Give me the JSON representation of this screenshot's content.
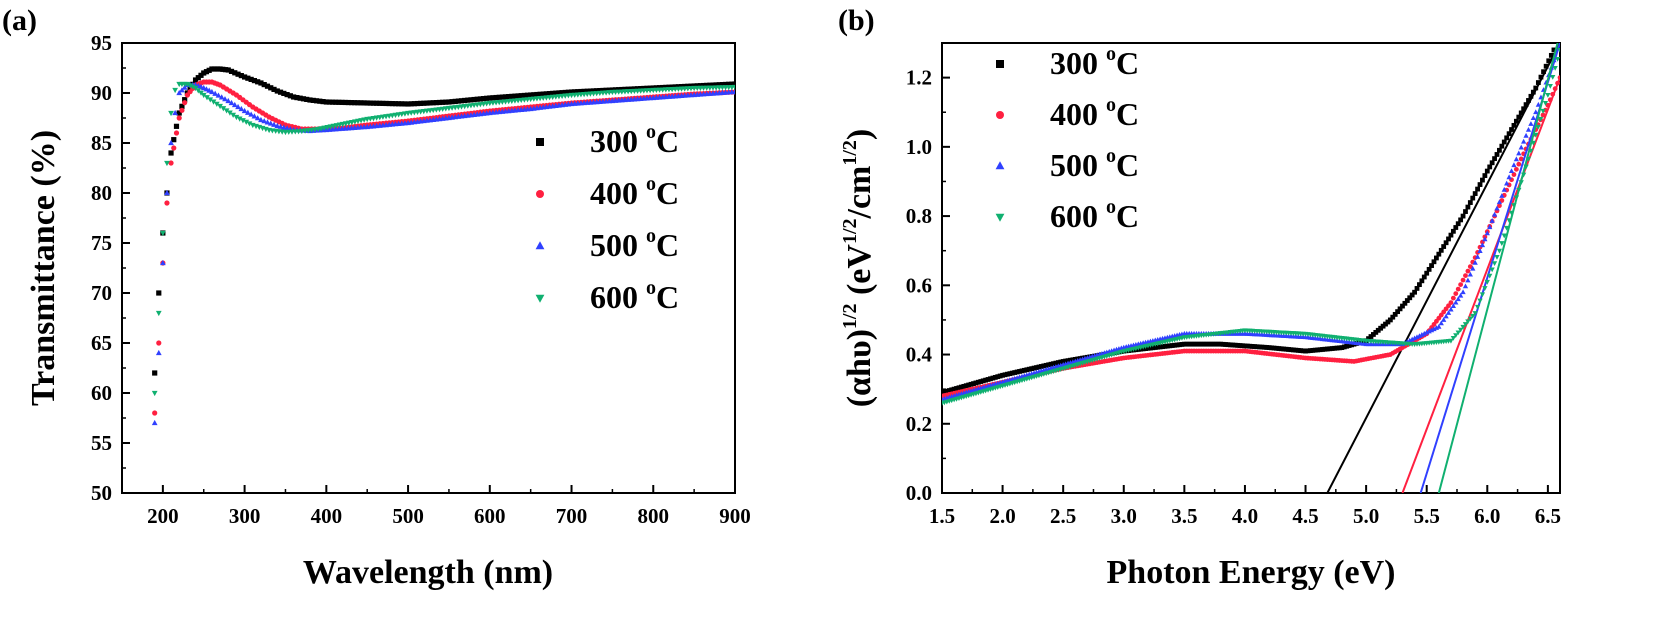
{
  "colors": {
    "300": "#000000",
    "400": "#ff2040",
    "500": "#3040ff",
    "600": "#10b070"
  },
  "legend": [
    {
      "key": "300",
      "label": "300 ",
      "unit_sup": "o",
      "unit": "C",
      "marker": "square"
    },
    {
      "key": "400",
      "label": "400 ",
      "unit_sup": "o",
      "unit": "C",
      "marker": "circle"
    },
    {
      "key": "500",
      "label": "500 ",
      "unit_sup": "o",
      "unit": "C",
      "marker": "triangle-up"
    },
    {
      "key": "600",
      "label": "600 ",
      "unit_sup": "o",
      "unit": "C",
      "marker": "triangle-down"
    }
  ],
  "chart_data": [
    {
      "panel": "(a)",
      "type": "scatter",
      "xlabel": "Wavelength (nm)",
      "ylabel": "Transmittance (%)",
      "xlim": [
        150,
        900
      ],
      "ylim": [
        50,
        95
      ],
      "xticks": [
        200,
        300,
        400,
        500,
        600,
        700,
        800,
        900
      ],
      "yticks": [
        50,
        55,
        60,
        65,
        70,
        75,
        80,
        85,
        90,
        95
      ],
      "legend_position": "right",
      "series": [
        {
          "name": "300 oC",
          "key": "300",
          "points": [
            [
              190,
              62
            ],
            [
              195,
              70
            ],
            [
              200,
              76
            ],
            [
              205,
              80
            ],
            [
              210,
              84
            ],
            [
              220,
              88
            ],
            [
              230,
              90
            ],
            [
              240,
              91.3
            ],
            [
              250,
              92
            ],
            [
              260,
              92.4
            ],
            [
              270,
              92.4
            ],
            [
              280,
              92.3
            ],
            [
              300,
              91.6
            ],
            [
              320,
              91
            ],
            [
              340,
              90.2
            ],
            [
              360,
              89.6
            ],
            [
              380,
              89.3
            ],
            [
              400,
              89.1
            ],
            [
              450,
              89
            ],
            [
              500,
              88.9
            ],
            [
              550,
              89.1
            ],
            [
              600,
              89.5
            ],
            [
              650,
              89.8
            ],
            [
              700,
              90.1
            ],
            [
              750,
              90.3
            ],
            [
              800,
              90.5
            ],
            [
              850,
              90.7
            ],
            [
              900,
              90.9
            ]
          ]
        },
        {
          "name": "400 oC",
          "key": "400",
          "points": [
            [
              190,
              58
            ],
            [
              195,
              65
            ],
            [
              200,
              73
            ],
            [
              205,
              79
            ],
            [
              210,
              83
            ],
            [
              220,
              87.5
            ],
            [
              230,
              89.8
            ],
            [
              240,
              90.8
            ],
            [
              250,
              91.1
            ],
            [
              260,
              91.1
            ],
            [
              270,
              90.8
            ],
            [
              290,
              89.8
            ],
            [
              310,
              88.6
            ],
            [
              330,
              87.6
            ],
            [
              350,
              86.8
            ],
            [
              370,
              86.4
            ],
            [
              390,
              86.4
            ],
            [
              420,
              86.5
            ],
            [
              450,
              86.8
            ],
            [
              500,
              87.2
            ],
            [
              550,
              87.7
            ],
            [
              600,
              88.2
            ],
            [
              650,
              88.6
            ],
            [
              700,
              89
            ],
            [
              750,
              89.3
            ],
            [
              800,
              89.6
            ],
            [
              850,
              89.9
            ],
            [
              900,
              90.1
            ]
          ]
        },
        {
          "name": "500 oC",
          "key": "500",
          "points": [
            [
              190,
              57
            ],
            [
              195,
              64
            ],
            [
              200,
              73
            ],
            [
              205,
              80
            ],
            [
              210,
              85
            ],
            [
              215,
              88
            ],
            [
              220,
              90
            ],
            [
              230,
              90.8
            ],
            [
              240,
              90.8
            ],
            [
              250,
              90.5
            ],
            [
              260,
              90.1
            ],
            [
              280,
              89.2
            ],
            [
              300,
              88.2
            ],
            [
              320,
              87.3
            ],
            [
              340,
              86.7
            ],
            [
              360,
              86.3
            ],
            [
              380,
              86.2
            ],
            [
              400,
              86.3
            ],
            [
              450,
              86.6
            ],
            [
              500,
              87
            ],
            [
              550,
              87.5
            ],
            [
              600,
              88
            ],
            [
              650,
              88.4
            ],
            [
              700,
              88.9
            ],
            [
              750,
              89.2
            ],
            [
              800,
              89.5
            ],
            [
              850,
              89.8
            ],
            [
              900,
              90.1
            ]
          ]
        },
        {
          "name": "600 oC",
          "key": "600",
          "points": [
            [
              190,
              60
            ],
            [
              195,
              68
            ],
            [
              200,
              76
            ],
            [
              205,
              83
            ],
            [
              210,
              88
            ],
            [
              215,
              90.3
            ],
            [
              220,
              90.9
            ],
            [
              230,
              90.9
            ],
            [
              240,
              90.5
            ],
            [
              250,
              89.8
            ],
            [
              270,
              88.7
            ],
            [
              290,
              87.6
            ],
            [
              310,
              86.8
            ],
            [
              330,
              86.3
            ],
            [
              350,
              86.1
            ],
            [
              370,
              86.2
            ],
            [
              390,
              86.4
            ],
            [
              420,
              86.9
            ],
            [
              450,
              87.4
            ],
            [
              500,
              88
            ],
            [
              550,
              88.5
            ],
            [
              600,
              89
            ],
            [
              650,
              89.4
            ],
            [
              700,
              89.8
            ],
            [
              750,
              90.1
            ],
            [
              800,
              90.3
            ],
            [
              850,
              90.5
            ],
            [
              900,
              90.6
            ]
          ]
        }
      ]
    },
    {
      "panel": "(b)",
      "type": "scatter",
      "xlabel": "Photon Energy (eV)",
      "ylabel_main": "(αhυ)",
      "ylabel_sup1": "1/2",
      "ylabel_mid": " (eV",
      "ylabel_sup2": "1/2",
      "ylabel_mid2": "/cm",
      "ylabel_sup3": "1/2",
      "ylabel_end": ")",
      "xlim": [
        1.5,
        6.6
      ],
      "ylim": [
        0.0,
        1.3
      ],
      "xticks": [
        1.5,
        2.0,
        2.5,
        3.0,
        3.5,
        4.0,
        4.5,
        5.0,
        5.5,
        6.0,
        6.5
      ],
      "xtick_labels": [
        "1.5",
        "2.0",
        "2.5",
        "3.0",
        "3.5",
        "4.0",
        "4.5",
        "5.0",
        "5.5",
        "6.0",
        "6.5"
      ],
      "yticks": [
        0.0,
        0.2,
        0.4,
        0.6,
        0.8,
        1.0,
        1.2
      ],
      "ytick_labels": [
        "0.0",
        "0.2",
        "0.4",
        "0.6",
        "0.8",
        "1.0",
        "1.2"
      ],
      "legend_position": "top-left",
      "series": [
        {
          "name": "300 oC",
          "key": "300",
          "points": [
            [
              1.5,
              0.29
            ],
            [
              2.0,
              0.34
            ],
            [
              2.5,
              0.38
            ],
            [
              3.0,
              0.41
            ],
            [
              3.5,
              0.43
            ],
            [
              3.8,
              0.43
            ],
            [
              4.2,
              0.42
            ],
            [
              4.5,
              0.41
            ],
            [
              4.8,
              0.42
            ],
            [
              5.0,
              0.44
            ],
            [
              5.2,
              0.5
            ],
            [
              5.4,
              0.58
            ],
            [
              5.6,
              0.69
            ],
            [
              5.8,
              0.8
            ],
            [
              6.0,
              0.93
            ],
            [
              6.2,
              1.05
            ],
            [
              6.4,
              1.17
            ],
            [
              6.55,
              1.28
            ]
          ],
          "fit_line": [
            [
              4.68,
              0.0
            ],
            [
              6.6,
              1.3
            ]
          ]
        },
        {
          "name": "400 oC",
          "key": "400",
          "points": [
            [
              1.5,
              0.28
            ],
            [
              2.0,
              0.32
            ],
            [
              2.5,
              0.36
            ],
            [
              3.0,
              0.39
            ],
            [
              3.5,
              0.41
            ],
            [
              4.0,
              0.41
            ],
            [
              4.5,
              0.39
            ],
            [
              4.9,
              0.38
            ],
            [
              5.2,
              0.4
            ],
            [
              5.5,
              0.46
            ],
            [
              5.7,
              0.55
            ],
            [
              5.9,
              0.68
            ],
            [
              6.1,
              0.83
            ],
            [
              6.3,
              0.98
            ],
            [
              6.5,
              1.12
            ],
            [
              6.6,
              1.2
            ]
          ],
          "fit_line": [
            [
              5.3,
              0.0
            ],
            [
              6.6,
              1.2
            ]
          ]
        },
        {
          "name": "500 oC",
          "key": "500",
          "points": [
            [
              1.5,
              0.27
            ],
            [
              2.0,
              0.32
            ],
            [
              2.5,
              0.37
            ],
            [
              3.0,
              0.42
            ],
            [
              3.5,
              0.46
            ],
            [
              4.0,
              0.46
            ],
            [
              4.5,
              0.45
            ],
            [
              5.0,
              0.43
            ],
            [
              5.3,
              0.43
            ],
            [
              5.6,
              0.48
            ],
            [
              5.8,
              0.58
            ],
            [
              6.0,
              0.75
            ],
            [
              6.2,
              0.93
            ],
            [
              6.4,
              1.1
            ],
            [
              6.55,
              1.25
            ]
          ],
          "fit_line": [
            [
              5.45,
              0.0
            ],
            [
              6.6,
              1.3
            ]
          ]
        },
        {
          "name": "600 oC",
          "key": "600",
          "points": [
            [
              1.5,
              0.26
            ],
            [
              2.0,
              0.31
            ],
            [
              2.5,
              0.36
            ],
            [
              3.0,
              0.41
            ],
            [
              3.5,
              0.45
            ],
            [
              4.0,
              0.47
            ],
            [
              4.5,
              0.46
            ],
            [
              5.0,
              0.44
            ],
            [
              5.4,
              0.43
            ],
            [
              5.7,
              0.44
            ],
            [
              5.9,
              0.52
            ],
            [
              6.1,
              0.7
            ],
            [
              6.3,
              0.92
            ],
            [
              6.5,
              1.15
            ],
            [
              6.6,
              1.28
            ]
          ],
          "fit_line": [
            [
              5.6,
              0.0
            ],
            [
              6.58,
              1.3
            ]
          ]
        }
      ]
    }
  ]
}
